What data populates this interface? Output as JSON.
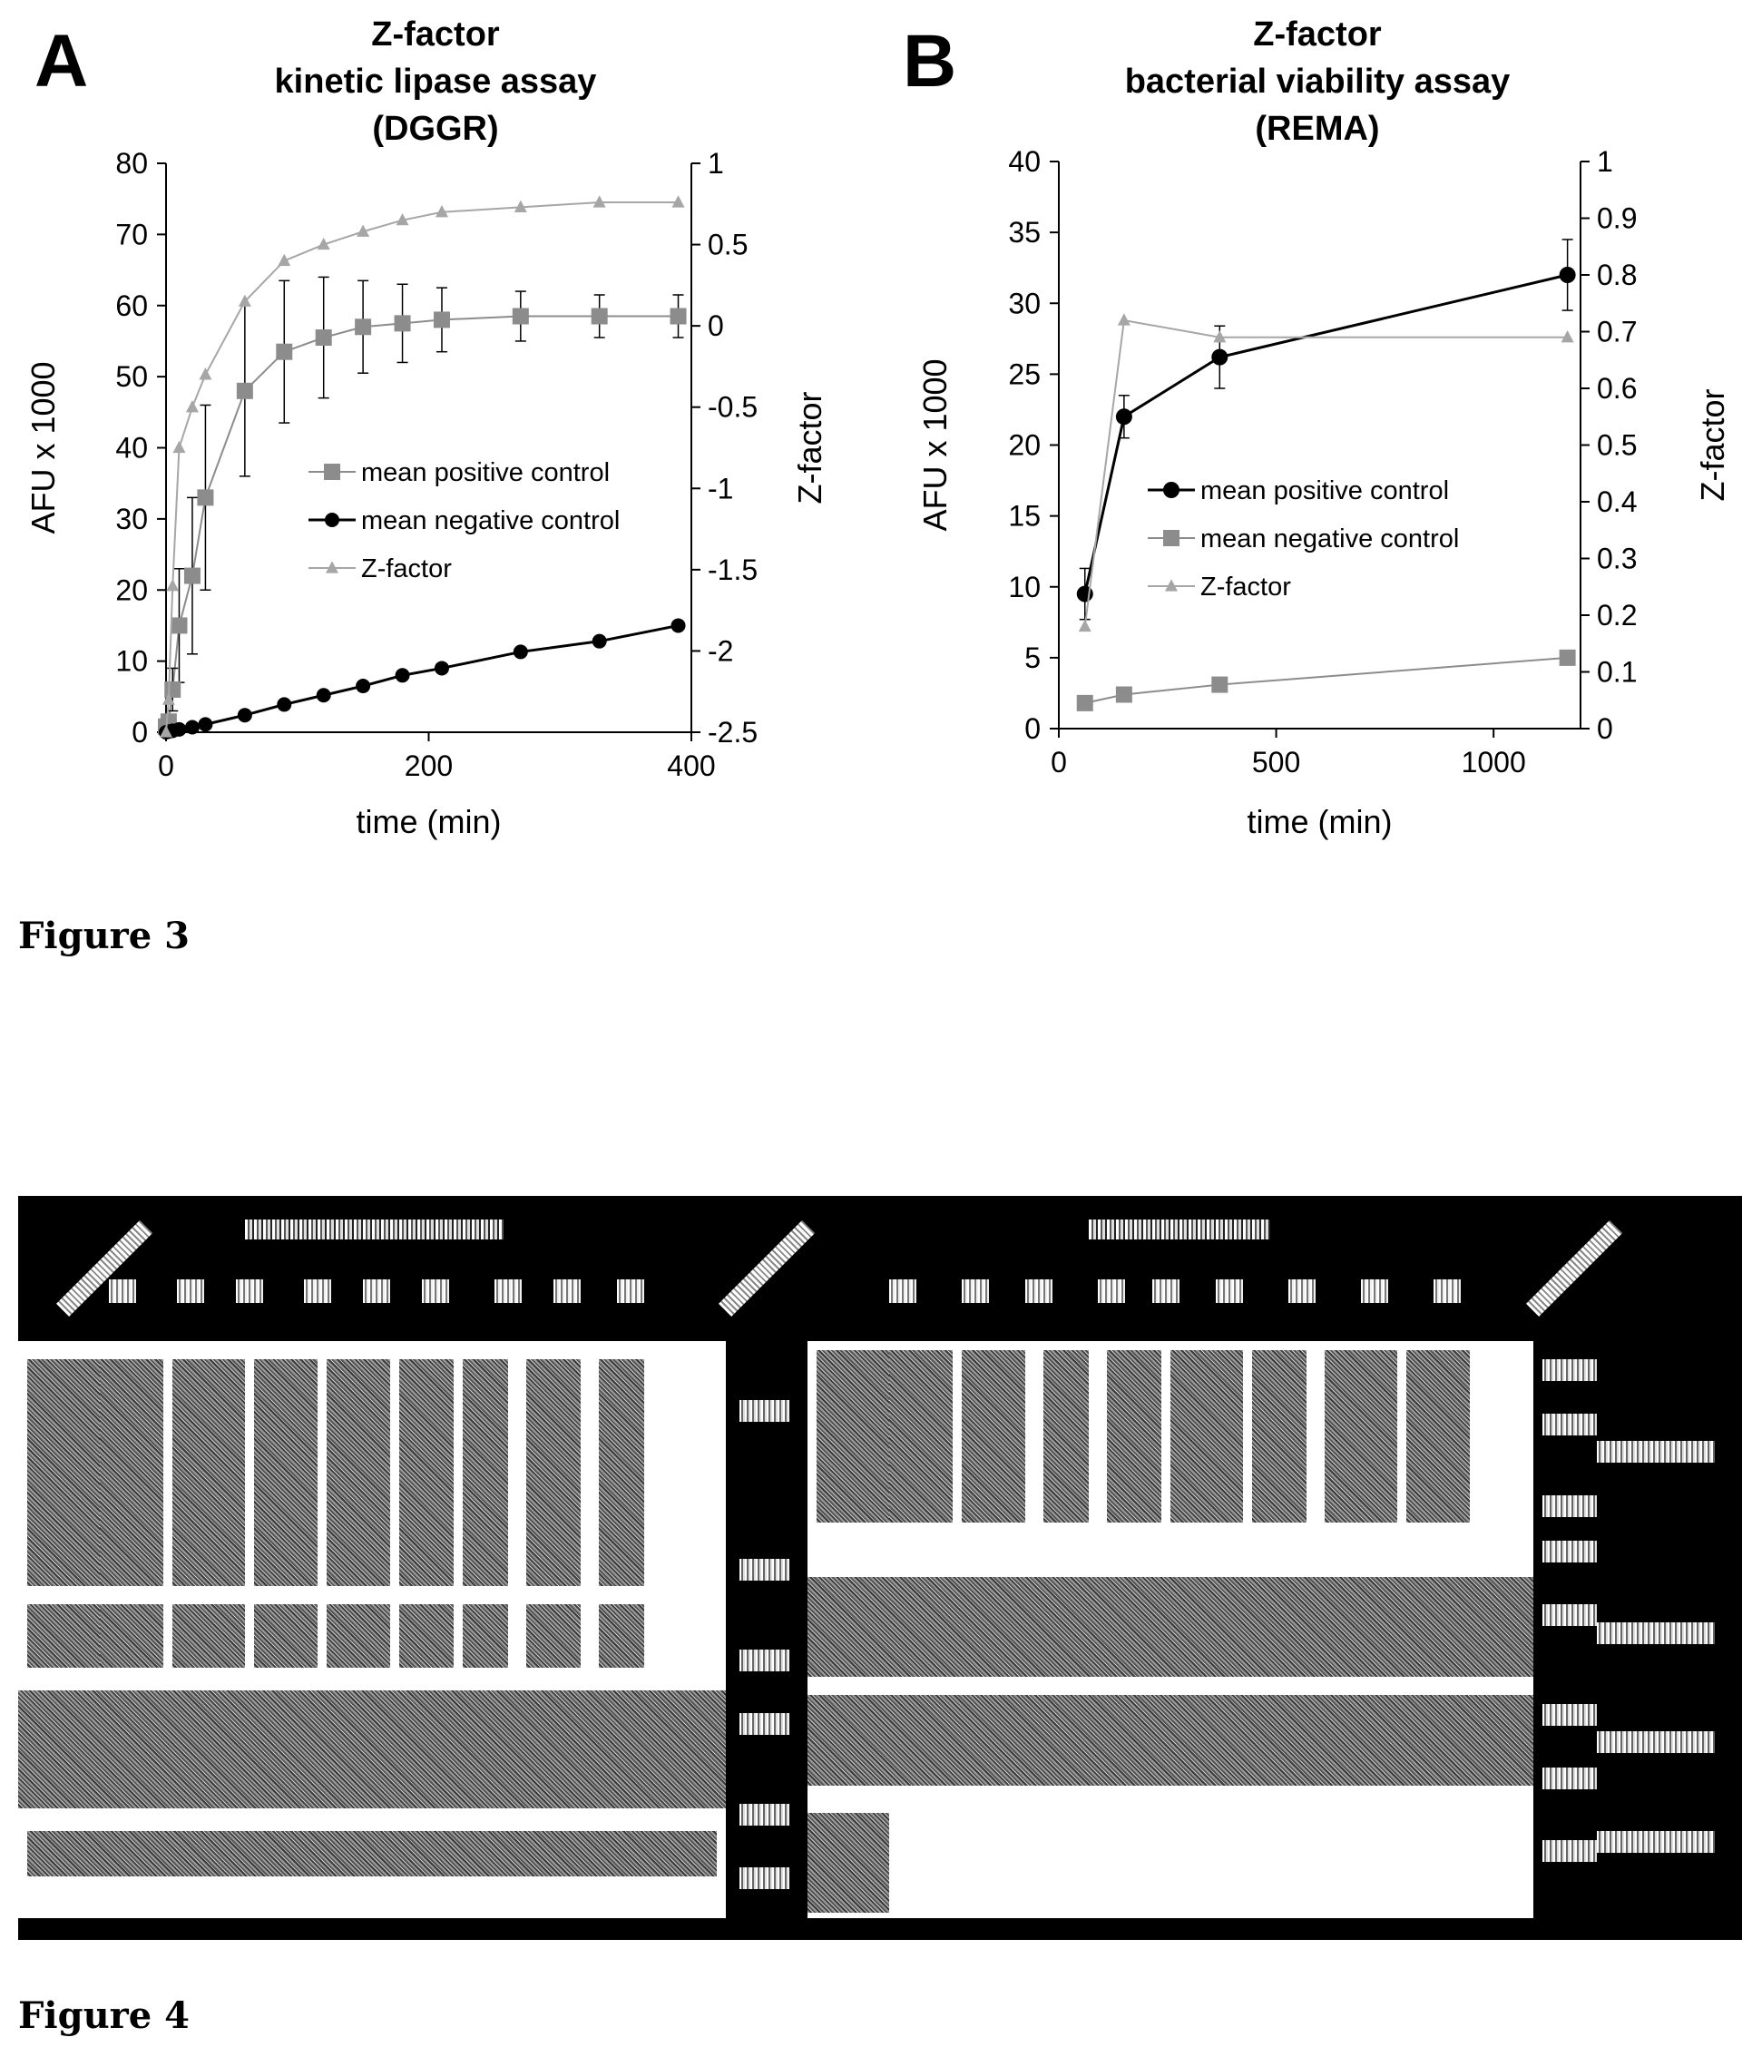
{
  "figure3": {
    "caption": "Figure 3"
  },
  "figure4": {
    "caption": "Figure 4"
  },
  "chart_data": [
    {
      "panel": "A",
      "type": "line",
      "title_lines": [
        "Z-factor",
        "kinetic lipase assay",
        "(DGGR)"
      ],
      "xlabel": "time (min)",
      "ylabel": "AFU x 1000",
      "y2label": "Z-factor",
      "xlim": [
        0,
        400
      ],
      "ylim": [
        0,
        80
      ],
      "y2lim": [
        -2.5,
        1
      ],
      "xticks": [
        0,
        200,
        400
      ],
      "yticks": [
        0,
        10,
        20,
        30,
        40,
        50,
        60,
        70,
        80
      ],
      "y2ticks": [
        -2.5,
        -2,
        -1.5,
        -1,
        -0.5,
        0,
        0.5,
        1
      ],
      "y2tick_labels": [
        "-2.5",
        "-2",
        "-1.5",
        "-1",
        "-0.5",
        "0",
        "0.5",
        "1"
      ],
      "grid": false,
      "legend_position": "center-right",
      "series": [
        {
          "name": "mean positive control",
          "axis": "left",
          "color": "#8c8c8c",
          "marker": "square",
          "x": [
            0,
            2,
            5,
            10,
            20,
            30,
            60,
            90,
            120,
            150,
            180,
            210,
            270,
            330,
            390
          ],
          "y": [
            0.8,
            1.5,
            6,
            15,
            22,
            33,
            48,
            53.5,
            55.5,
            57,
            57.5,
            58,
            58.5,
            58.5,
            58.5
          ],
          "err": [
            0,
            0.5,
            3,
            8,
            11,
            13,
            12,
            10,
            8.5,
            6.5,
            5.5,
            4.5,
            3.5,
            3,
            3
          ]
        },
        {
          "name": "mean negative control",
          "axis": "left",
          "color": "#000000",
          "marker": "circle",
          "x": [
            0,
            2,
            5,
            10,
            20,
            30,
            60,
            90,
            120,
            150,
            180,
            210,
            270,
            330,
            390
          ],
          "y": [
            0,
            0.1,
            0.2,
            0.4,
            0.7,
            1.1,
            2.4,
            3.9,
            5.2,
            6.5,
            8,
            9,
            11.3,
            12.8,
            15
          ],
          "err": []
        },
        {
          "name": "Z-factor",
          "axis": "right",
          "color": "#a6a6a6",
          "marker": "triangle",
          "x": [
            0,
            2,
            5,
            10,
            20,
            30,
            60,
            90,
            120,
            150,
            180,
            210,
            270,
            330,
            390
          ],
          "y": [
            -2.5,
            -2.3,
            -1.6,
            -0.75,
            -0.5,
            -0.3,
            0.15,
            0.4,
            0.5,
            0.58,
            0.65,
            0.7,
            0.73,
            0.76,
            0.76
          ],
          "err": []
        }
      ]
    },
    {
      "panel": "B",
      "type": "line",
      "title_lines": [
        "Z-factor",
        "bacterial viability assay",
        "(REMA)"
      ],
      "xlabel": "time (min)",
      "ylabel": "AFU x 1000",
      "y2label": "Z-factor",
      "xlim": [
        0,
        1200
      ],
      "ylim": [
        0,
        40
      ],
      "y2lim": [
        0,
        1
      ],
      "xticks": [
        0,
        500,
        1000
      ],
      "yticks": [
        0,
        5,
        10,
        15,
        20,
        25,
        30,
        35,
        40
      ],
      "y2ticks": [
        0,
        0.1,
        0.2,
        0.3,
        0.4,
        0.5,
        0.6,
        0.7,
        0.8,
        0.9,
        1
      ],
      "y2tick_labels": [
        "0",
        "0.1",
        "0.2",
        "0.3",
        "0.4",
        "0.5",
        "0.6",
        "0.7",
        "0.8",
        "0.9",
        "1"
      ],
      "grid": false,
      "legend_position": "center-right",
      "series": [
        {
          "name": "mean positive control",
          "axis": "left",
          "color": "#000000",
          "marker": "circle",
          "x": [
            60,
            150,
            370,
            1170
          ],
          "y": [
            9.5,
            22,
            26.2,
            32
          ],
          "err": [
            1.8,
            1.5,
            2.2,
            2.5
          ]
        },
        {
          "name": "mean negative control",
          "axis": "left",
          "color": "#8c8c8c",
          "marker": "square",
          "x": [
            60,
            150,
            370,
            1170
          ],
          "y": [
            1.8,
            2.4,
            3.1,
            5
          ],
          "err": []
        },
        {
          "name": "Z-factor",
          "axis": "right",
          "color": "#a6a6a6",
          "marker": "triangle",
          "x": [
            60,
            150,
            370,
            1170
          ],
          "y": [
            0.18,
            0.72,
            0.69,
            0.69
          ],
          "err": []
        }
      ]
    }
  ]
}
